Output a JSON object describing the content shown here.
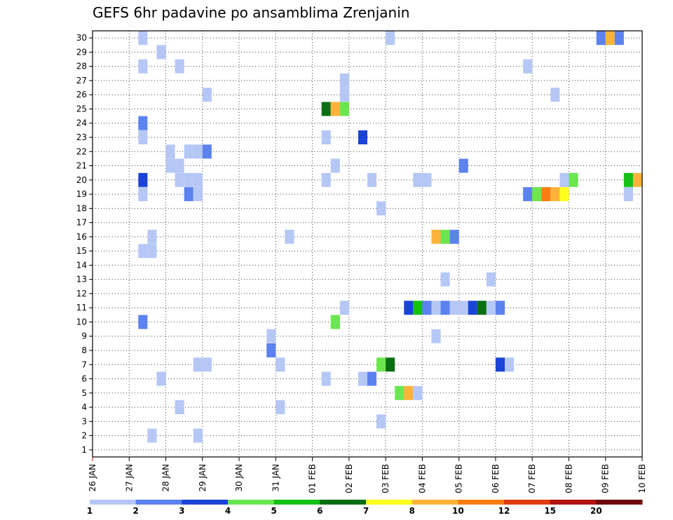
{
  "chart_data": {
    "type": "heatmap",
    "title": "GEFS 6hr padavine po ansamblima Zrenjanin",
    "y_labels": [
      "1",
      "2",
      "3",
      "4",
      "5",
      "6",
      "7",
      "8",
      "9",
      "10",
      "11",
      "12",
      "13",
      "14",
      "15",
      "16",
      "17",
      "18",
      "19",
      "20",
      "21",
      "22",
      "23",
      "24",
      "25",
      "26",
      "27",
      "28",
      "29",
      "30"
    ],
    "x_labels": [
      "26 JAN",
      "27 JAN",
      "28 JAN",
      "29 JAN",
      "30 JAN",
      "31 JAN",
      "01 FEB",
      "02 FEB",
      "03 FEB",
      "04 FEB",
      "05 FEB",
      "06 FEB",
      "07 FEB",
      "08 FEB",
      "09 FEB",
      "10 FEB"
    ],
    "x_unit": "days since 26 JAN 00Z, 6-hourly steps (0.25 day)",
    "ylim": [
      0,
      30
    ],
    "xlim": [
      0,
      15
    ],
    "colorbar": {
      "labels": [
        "1",
        "2",
        "3",
        "4",
        "5",
        "6",
        "7",
        "8",
        "10",
        "12",
        "15",
        "20"
      ],
      "colors": [
        "#b4c7f5",
        "#5b82ee",
        "#1a44d6",
        "#6be64e",
        "#14bf16",
        "#0a6e12",
        "#ffff1e",
        "#fdb23a",
        "#f87e12",
        "#e03c12",
        "#b01212",
        "#6e0a0a"
      ]
    },
    "cells": [
      {
        "ens": 30,
        "t": 1.25,
        "c": 0
      },
      {
        "ens": 30,
        "t": 8.0,
        "c": 0
      },
      {
        "ens": 30,
        "t": 13.75,
        "c": 1
      },
      {
        "ens": 30,
        "t": 14.0,
        "c": 7
      },
      {
        "ens": 30,
        "t": 14.25,
        "c": 1
      },
      {
        "ens": 29,
        "t": 1.75,
        "c": 0
      },
      {
        "ens": 28,
        "t": 1.25,
        "c": 0
      },
      {
        "ens": 28,
        "t": 2.25,
        "c": 0
      },
      {
        "ens": 28,
        "t": 11.75,
        "c": 0
      },
      {
        "ens": 27,
        "t": 6.75,
        "c": 0
      },
      {
        "ens": 26,
        "t": 3.0,
        "c": 0
      },
      {
        "ens": 26,
        "t": 6.75,
        "c": 0
      },
      {
        "ens": 26,
        "t": 12.5,
        "c": 0
      },
      {
        "ens": 25,
        "t": 6.25,
        "c": 5
      },
      {
        "ens": 25,
        "t": 6.5,
        "c": 7
      },
      {
        "ens": 25,
        "t": 6.75,
        "c": 3
      },
      {
        "ens": 24,
        "t": 1.25,
        "c": 1
      },
      {
        "ens": 23,
        "t": 1.25,
        "c": 0
      },
      {
        "ens": 23,
        "t": 6.25,
        "c": 0
      },
      {
        "ens": 23,
        "t": 7.25,
        "c": 2
      },
      {
        "ens": 22,
        "t": 2.0,
        "c": 0
      },
      {
        "ens": 22,
        "t": 2.5,
        "c": 0
      },
      {
        "ens": 22,
        "t": 2.75,
        "c": 0
      },
      {
        "ens": 22,
        "t": 3.0,
        "c": 1
      },
      {
        "ens": 21,
        "t": 2.0,
        "c": 0
      },
      {
        "ens": 21,
        "t": 2.25,
        "c": 0
      },
      {
        "ens": 21,
        "t": 6.5,
        "c": 0
      },
      {
        "ens": 21,
        "t": 10.0,
        "c": 1
      },
      {
        "ens": 20,
        "t": 1.25,
        "c": 2
      },
      {
        "ens": 20,
        "t": 2.25,
        "c": 0
      },
      {
        "ens": 20,
        "t": 2.5,
        "c": 0
      },
      {
        "ens": 20,
        "t": 2.75,
        "c": 0
      },
      {
        "ens": 20,
        "t": 6.25,
        "c": 0
      },
      {
        "ens": 20,
        "t": 7.5,
        "c": 0
      },
      {
        "ens": 20,
        "t": 8.75,
        "c": 0
      },
      {
        "ens": 20,
        "t": 9.0,
        "c": 0
      },
      {
        "ens": 20,
        "t": 12.75,
        "c": 0
      },
      {
        "ens": 20,
        "t": 13.0,
        "c": 3
      },
      {
        "ens": 20,
        "t": 14.5,
        "c": 4
      },
      {
        "ens": 20,
        "t": 14.75,
        "c": 7
      },
      {
        "ens": 19,
        "t": 1.25,
        "c": 0
      },
      {
        "ens": 19,
        "t": 2.5,
        "c": 1
      },
      {
        "ens": 19,
        "t": 2.75,
        "c": 0
      },
      {
        "ens": 19,
        "t": 11.75,
        "c": 1
      },
      {
        "ens": 19,
        "t": 12.0,
        "c": 3
      },
      {
        "ens": 19,
        "t": 12.25,
        "c": 8
      },
      {
        "ens": 19,
        "t": 12.5,
        "c": 7
      },
      {
        "ens": 19,
        "t": 12.75,
        "c": 6
      },
      {
        "ens": 19,
        "t": 14.5,
        "c": 0
      },
      {
        "ens": 18,
        "t": 7.75,
        "c": 0
      },
      {
        "ens": 16,
        "t": 1.5,
        "c": 0
      },
      {
        "ens": 16,
        "t": 5.25,
        "c": 0
      },
      {
        "ens": 16,
        "t": 9.25,
        "c": 7
      },
      {
        "ens": 16,
        "t": 9.5,
        "c": 3
      },
      {
        "ens": 16,
        "t": 9.75,
        "c": 1
      },
      {
        "ens": 15,
        "t": 1.25,
        "c": 0
      },
      {
        "ens": 15,
        "t": 1.5,
        "c": 0
      },
      {
        "ens": 13,
        "t": 9.5,
        "c": 0
      },
      {
        "ens": 13,
        "t": 10.75,
        "c": 0
      },
      {
        "ens": 11,
        "t": 6.75,
        "c": 0
      },
      {
        "ens": 11,
        "t": 8.5,
        "c": 2
      },
      {
        "ens": 11,
        "t": 8.75,
        "c": 4
      },
      {
        "ens": 11,
        "t": 9.0,
        "c": 1
      },
      {
        "ens": 11,
        "t": 9.25,
        "c": 0
      },
      {
        "ens": 11,
        "t": 9.5,
        "c": 1
      },
      {
        "ens": 11,
        "t": 9.75,
        "c": 0
      },
      {
        "ens": 11,
        "t": 10.0,
        "c": 0
      },
      {
        "ens": 11,
        "t": 10.25,
        "c": 2
      },
      {
        "ens": 11,
        "t": 10.5,
        "c": 5
      },
      {
        "ens": 11,
        "t": 10.75,
        "c": 0
      },
      {
        "ens": 11,
        "t": 11.0,
        "c": 1
      },
      {
        "ens": 10,
        "t": 1.25,
        "c": 1
      },
      {
        "ens": 10,
        "t": 6.5,
        "c": 3
      },
      {
        "ens": 9,
        "t": 4.75,
        "c": 0
      },
      {
        "ens": 9,
        "t": 9.25,
        "c": 0
      },
      {
        "ens": 8,
        "t": 4.75,
        "c": 1
      },
      {
        "ens": 7,
        "t": 2.75,
        "c": 0
      },
      {
        "ens": 7,
        "t": 3.0,
        "c": 0
      },
      {
        "ens": 7,
        "t": 5.0,
        "c": 0
      },
      {
        "ens": 7,
        "t": 7.75,
        "c": 3
      },
      {
        "ens": 7,
        "t": 8.0,
        "c": 5
      },
      {
        "ens": 7,
        "t": 11.0,
        "c": 2
      },
      {
        "ens": 7,
        "t": 11.25,
        "c": 0
      },
      {
        "ens": 6,
        "t": 1.75,
        "c": 0
      },
      {
        "ens": 6,
        "t": 6.25,
        "c": 0
      },
      {
        "ens": 6,
        "t": 7.25,
        "c": 0
      },
      {
        "ens": 6,
        "t": 7.5,
        "c": 1
      },
      {
        "ens": 5,
        "t": 8.25,
        "c": 3
      },
      {
        "ens": 5,
        "t": 8.5,
        "c": 7
      },
      {
        "ens": 5,
        "t": 8.75,
        "c": 0
      },
      {
        "ens": 4,
        "t": 2.25,
        "c": 0
      },
      {
        "ens": 4,
        "t": 5.0,
        "c": 0
      },
      {
        "ens": 3,
        "t": 7.75,
        "c": 0
      },
      {
        "ens": 2,
        "t": 1.5,
        "c": 0
      },
      {
        "ens": 2,
        "t": 2.75,
        "c": 0
      }
    ],
    "grid": true,
    "legend_placement": "bottom"
  }
}
